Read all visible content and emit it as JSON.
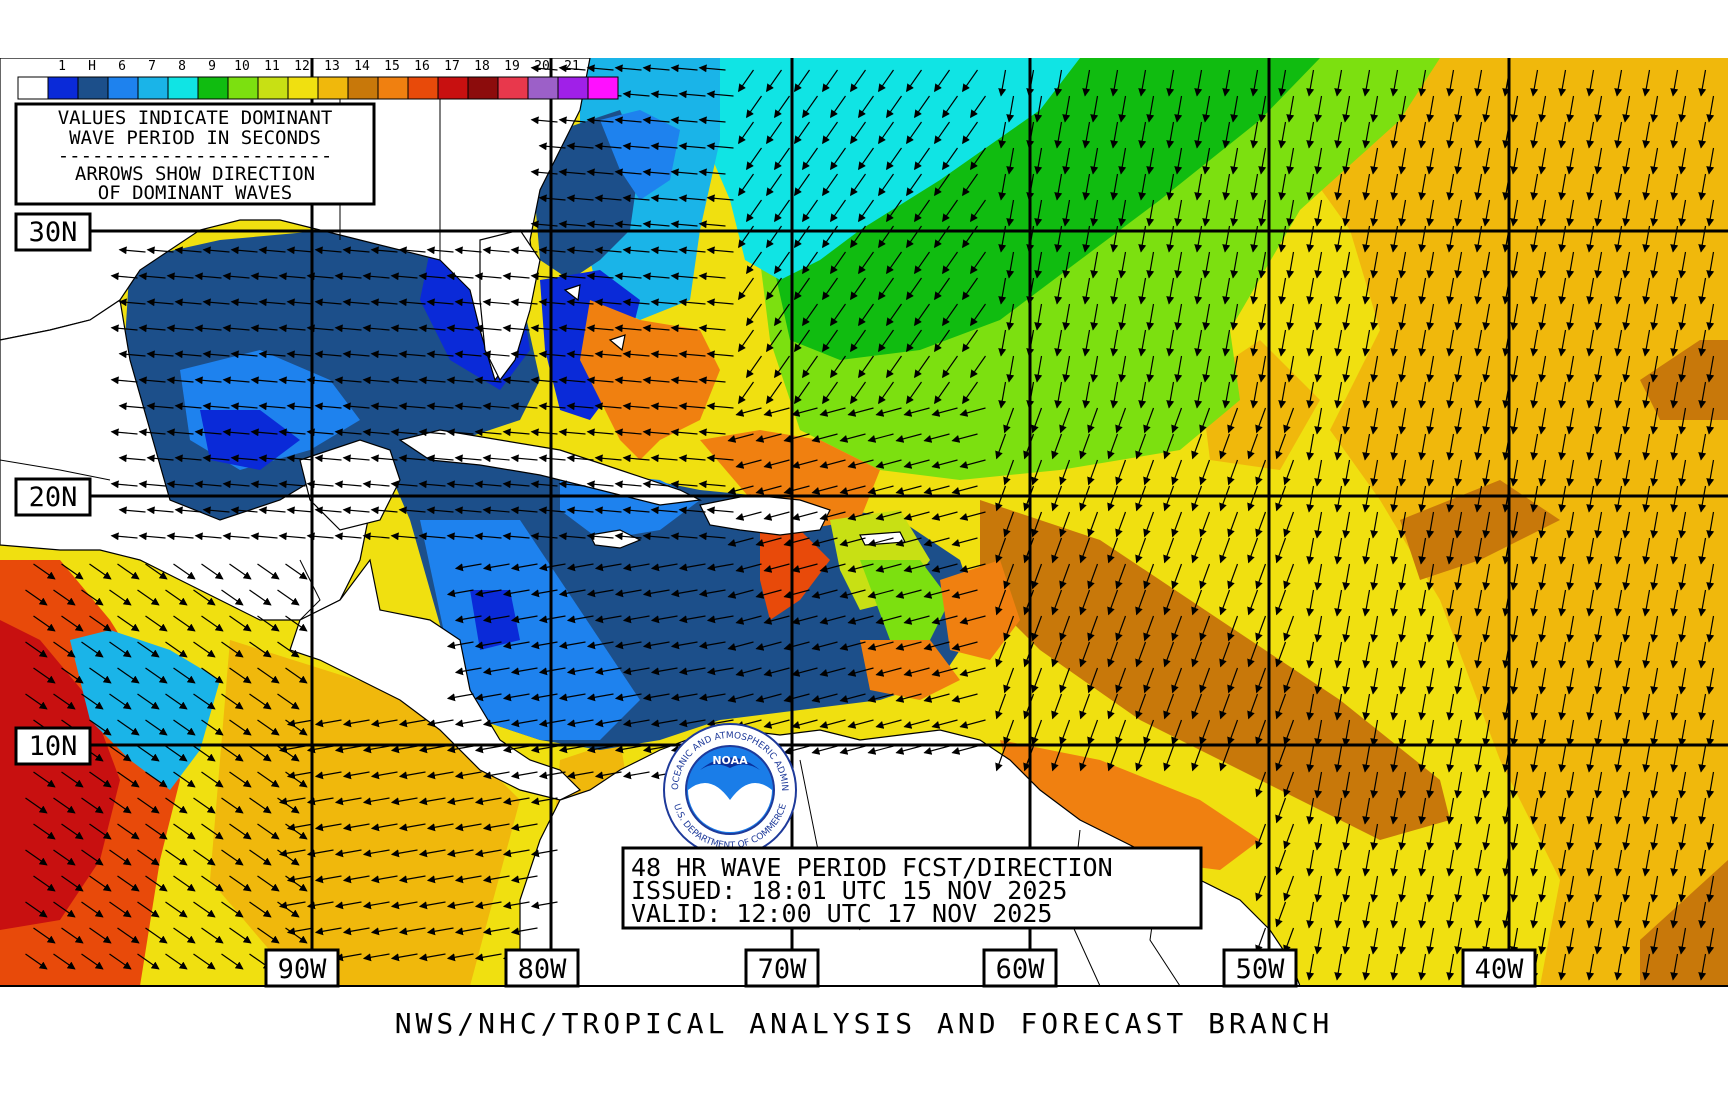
{
  "legend": {
    "labels": [
      "1",
      "H",
      "6",
      "7",
      "8",
      "9",
      "10",
      "11",
      "12",
      "13",
      "14",
      "15",
      "16",
      "17",
      "18",
      "19",
      "20",
      "21"
    ],
    "colors": [
      "#ffffff",
      "#0a2ad8",
      "#1c4f8a",
      "#1e82ee",
      "#1ab4e8",
      "#10e4e4",
      "#10bc10",
      "#7ce010",
      "#c8e014",
      "#f0e010",
      "#f0b80c",
      "#c8780a",
      "#f08010",
      "#e84a0a",
      "#c81010",
      "#8c0c0c",
      "#e8384c",
      "#9c60c8",
      "#a020e8",
      "#ff10ff"
    ]
  },
  "info_box": {
    "line1": "VALUES INDICATE DOMINANT",
    "line2": "WAVE PERIOD IN SECONDS",
    "divider": "------------------------",
    "line3": "ARROWS SHOW DIRECTION",
    "line4": "OF DOMINANT WAVES"
  },
  "lat_labels": [
    "30N",
    "20N",
    "10N"
  ],
  "lon_labels": [
    "90W",
    "80W",
    "70W",
    "60W",
    "50W",
    "40W"
  ],
  "title_box": {
    "line1": "48 HR WAVE PERIOD FCST/DIRECTION",
    "line2": "ISSUED: 18:01 UTC 15 NOV 2025",
    "line3": "VALID:  12:00 UTC 17 NOV 2025"
  },
  "logo": {
    "name": "NOAA",
    "ring_text_top": "NATIONAL OCEANIC AND ATMOSPHERIC ADMINISTRATION",
    "ring_text_bottom": "U.S. DEPARTMENT OF COMMERCE"
  },
  "footer": {
    "credit": "NWS/NHC/TROPICAL ANALYSIS AND FORECAST BRANCH"
  },
  "colors": {
    "land": "#ffffff",
    "grid": "#000000"
  }
}
